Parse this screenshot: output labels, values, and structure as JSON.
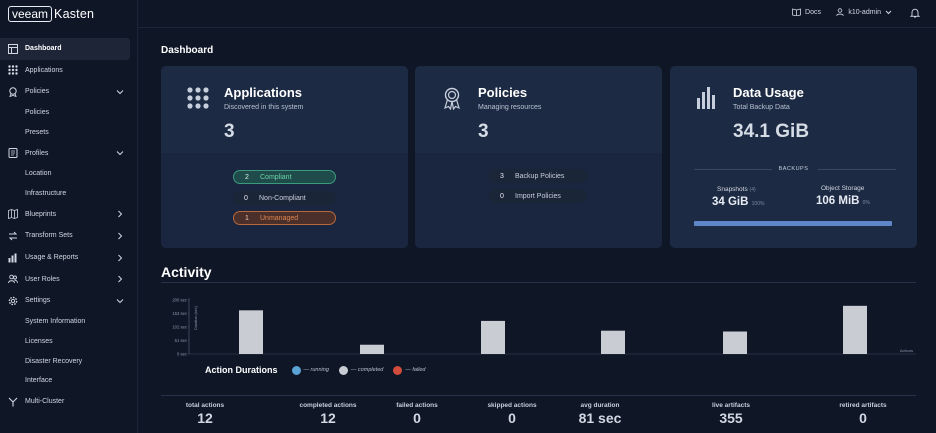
{
  "brand": {
    "logo_box": "veeam",
    "logo_text": "Kasten"
  },
  "topbar": {
    "docs": "Docs",
    "user": "k10-admin"
  },
  "nav": [
    {
      "label": "Dashboard",
      "icon": "dashboard-icon",
      "active": true
    },
    {
      "label": "Applications",
      "icon": "grid-icon"
    },
    {
      "label": "Policies",
      "icon": "policy-icon",
      "expand": "down"
    },
    {
      "label": "Policies",
      "sub": true
    },
    {
      "label": "Presets",
      "sub": true
    },
    {
      "label": "Profiles",
      "icon": "profile-icon",
      "expand": "down"
    },
    {
      "label": "Location",
      "sub": true
    },
    {
      "label": "Infrastructure",
      "sub": true
    },
    {
      "label": "Blueprints",
      "icon": "blueprint-icon",
      "expand": "right"
    },
    {
      "label": "Transform Sets",
      "icon": "transform-icon",
      "expand": "right"
    },
    {
      "label": "Usage & Reports",
      "icon": "chart-icon",
      "expand": "right"
    },
    {
      "label": "User Roles",
      "icon": "users-icon",
      "expand": "right"
    },
    {
      "label": "Settings",
      "icon": "gear-icon",
      "expand": "down"
    },
    {
      "label": "System Information",
      "sub": true
    },
    {
      "label": "Licenses",
      "sub": true
    },
    {
      "label": "Disaster Recovery",
      "sub": true
    },
    {
      "label": "Interface",
      "sub": true
    },
    {
      "label": "Multi-Cluster",
      "icon": "multicluster-icon"
    }
  ],
  "page": {
    "title": "Dashboard"
  },
  "cards": {
    "applications": {
      "title": "Applications",
      "subtitle": "Discovered in this system",
      "count": "3",
      "pills": [
        {
          "count": "2",
          "label": "Compliant"
        },
        {
          "count": "0",
          "label": "Non-Compliant"
        },
        {
          "count": "1",
          "label": "Unmanaged"
        }
      ]
    },
    "policies": {
      "title": "Policies",
      "subtitle": "Managing resources",
      "count": "3",
      "pills": [
        {
          "count": "3",
          "label": "Backup Policies"
        },
        {
          "count": "0",
          "label": "Import Policies"
        }
      ]
    },
    "data_usage": {
      "title": "Data Usage",
      "subtitle": "Total Backup Data",
      "total": "34.1 GiB",
      "backups_label": "BACKUPS",
      "snapshots_label": "Snapshots",
      "snapshots_count": "(4)",
      "snapshots_value": "34 GiB",
      "snapshots_pct": "100%",
      "object_label": "Object Storage",
      "object_value": "106 MiB",
      "object_pct": "0%",
      "bar_fraction": 1.0
    }
  },
  "activity": {
    "title": "Activity",
    "legend_title": "Action Durations",
    "legend": [
      {
        "label": "— running",
        "color": "#5aa3d4"
      },
      {
        "label": "— completed",
        "color": "#c9ccd3"
      },
      {
        "label": "— failed",
        "color": "#d24c3b"
      }
    ],
    "stats": [
      {
        "label": "total actions",
        "value": "12"
      },
      {
        "label": "completed actions",
        "value": "12"
      },
      {
        "label": "failed actions",
        "value": "0"
      },
      {
        "label": "skipped actions",
        "value": "0"
      },
      {
        "label": "avg duration",
        "value": "81 sec"
      },
      {
        "label": "live artifacts",
        "value": "355"
      },
      {
        "label": "retired artifacts",
        "value": "0"
      }
    ]
  },
  "chart_data": {
    "type": "bar",
    "ylabel": "Duration (sec)",
    "xlabel": "Actions",
    "yticks": [
      "200 sec",
      "153 sec",
      "102 sec",
      "51 sec",
      "0 sec"
    ],
    "ylim": [
      0,
      204
    ],
    "series": [
      {
        "values": [
          165,
          35,
          125,
          88,
          85,
          182
        ]
      }
    ],
    "bar_color": "#c9ccd3"
  }
}
